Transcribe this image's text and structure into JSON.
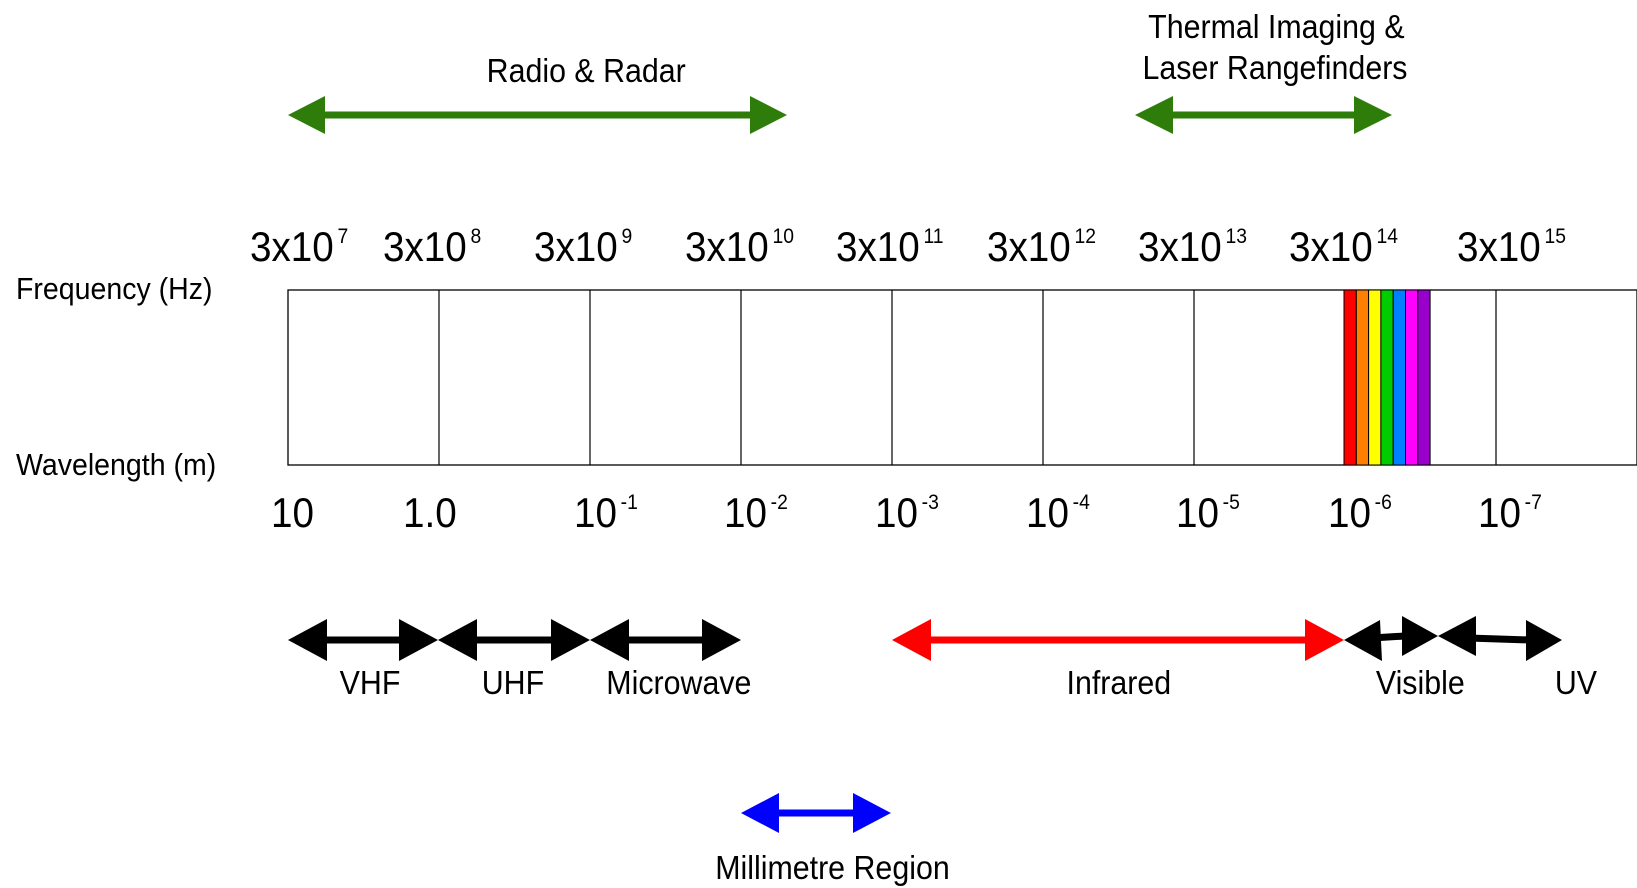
{
  "row_labels": {
    "frequency": "Frequency (Hz)",
    "wavelength": "Wavelength (m)"
  },
  "frequency_ticks": [
    {
      "base": "3x10",
      "exp": "7"
    },
    {
      "base": "3x10",
      "exp": "8"
    },
    {
      "base": "3x10",
      "exp": "9"
    },
    {
      "base": "3x10",
      "exp": "10"
    },
    {
      "base": "3x10",
      "exp": "11"
    },
    {
      "base": "3x10",
      "exp": "12"
    },
    {
      "base": "3x10",
      "exp": "13"
    },
    {
      "base": "3x10",
      "exp": "14"
    },
    {
      "base": "3x10",
      "exp": "15"
    }
  ],
  "wavelength_ticks": [
    {
      "base": "10",
      "exp": ""
    },
    {
      "base": "1.0",
      "exp": ""
    },
    {
      "base": "10",
      "exp": "-1"
    },
    {
      "base": "10",
      "exp": "-2"
    },
    {
      "base": "10",
      "exp": "-3"
    },
    {
      "base": "10",
      "exp": "-4"
    },
    {
      "base": "10",
      "exp": "-5"
    },
    {
      "base": "10",
      "exp": "-6"
    },
    {
      "base": "10",
      "exp": "-7"
    }
  ],
  "top_bands": {
    "radio_radar": "Radio & Radar",
    "thermal_line1": "Thermal Imaging &",
    "thermal_line2": "Laser Rangefinders"
  },
  "bottom_bands": {
    "vhf": "VHF",
    "uhf": "UHF",
    "microwave": "Microwave",
    "infrared": "Infrared",
    "visible": "Visible",
    "uv": "UV",
    "millimetre": "Millimetre Region"
  },
  "colors": {
    "band_green": "#2e7d0a",
    "band_black": "#000000",
    "infrared_red": "#ff0000",
    "millimetre_blue": "#0000ff",
    "spectrum": [
      "#ff0000",
      "#ff8000",
      "#ffff00",
      "#00cc00",
      "#0080ff",
      "#ff00ff",
      "#9900cc"
    ]
  }
}
